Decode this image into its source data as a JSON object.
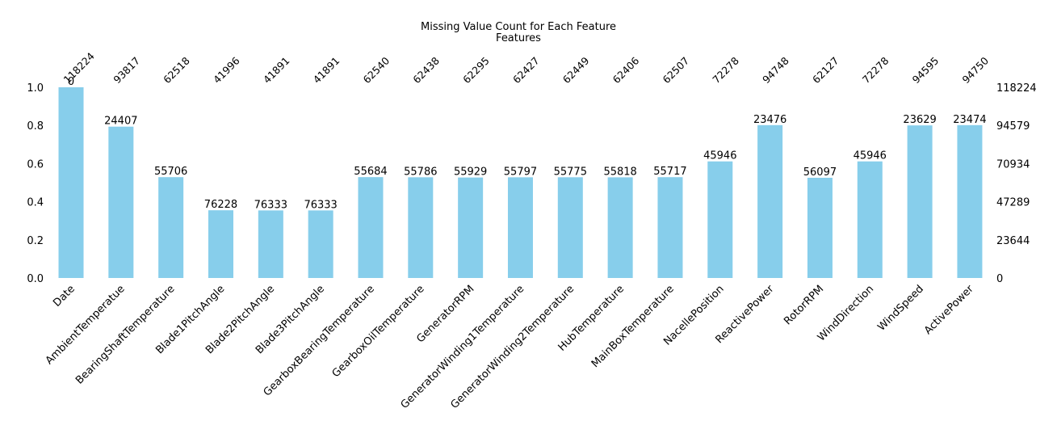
{
  "chart_data": {
    "type": "bar",
    "title": "Missing Value Count for Each Feature",
    "subtitle": "Features",
    "categories": [
      "Date",
      "AmbientTemperatue",
      "BearingShaftTemperature",
      "Blade1PitchAngle",
      "Blade2PitchAngle",
      "Blade3PitchAngle",
      "GearboxBearingTemperature",
      "GearboxOilTemperature",
      "GeneratorRPM",
      "GeneratorWinding1Temperature",
      "GeneratorWinding2Temperature",
      "HubTemperature",
      "MainBoxTemperature",
      "NacellePosition",
      "ReactivePower",
      "RotorRPM",
      "WindDirection",
      "WindSpeed",
      "ActivePower"
    ],
    "values": [
      118224,
      93817,
      62518,
      41996,
      41891,
      41891,
      62540,
      62438,
      62295,
      62427,
      62449,
      62406,
      62507,
      72278,
      94748,
      62127,
      72278,
      94595,
      94750
    ],
    "bar_labels": [
      "0",
      "24407",
      "55706",
      "76228",
      "76333",
      "76333",
      "55684",
      "55786",
      "55929",
      "55797",
      "55775",
      "55818",
      "55717",
      "45946",
      "23476",
      "56097",
      "45946",
      "23629",
      "23474"
    ],
    "top_labels": [
      "118224",
      "93817",
      "62518",
      "41996",
      "41891",
      "41891",
      "62540",
      "62438",
      "62295",
      "62427",
      "62449",
      "62406",
      "62507",
      "72278",
      "94748",
      "62127",
      "72278",
      "94595",
      "94750"
    ],
    "total": 118224,
    "ylim": [
      0,
      1.0
    ],
    "left_ticks": [
      "0.0",
      "0.2",
      "0.4",
      "0.6",
      "0.8",
      "1.0"
    ],
    "right_ticks": [
      "0",
      "23644",
      "47289",
      "70934",
      "94579",
      "118224"
    ],
    "xlabel": "",
    "ylabel": "",
    "grid": false,
    "bar_color": "#87ceeb"
  }
}
